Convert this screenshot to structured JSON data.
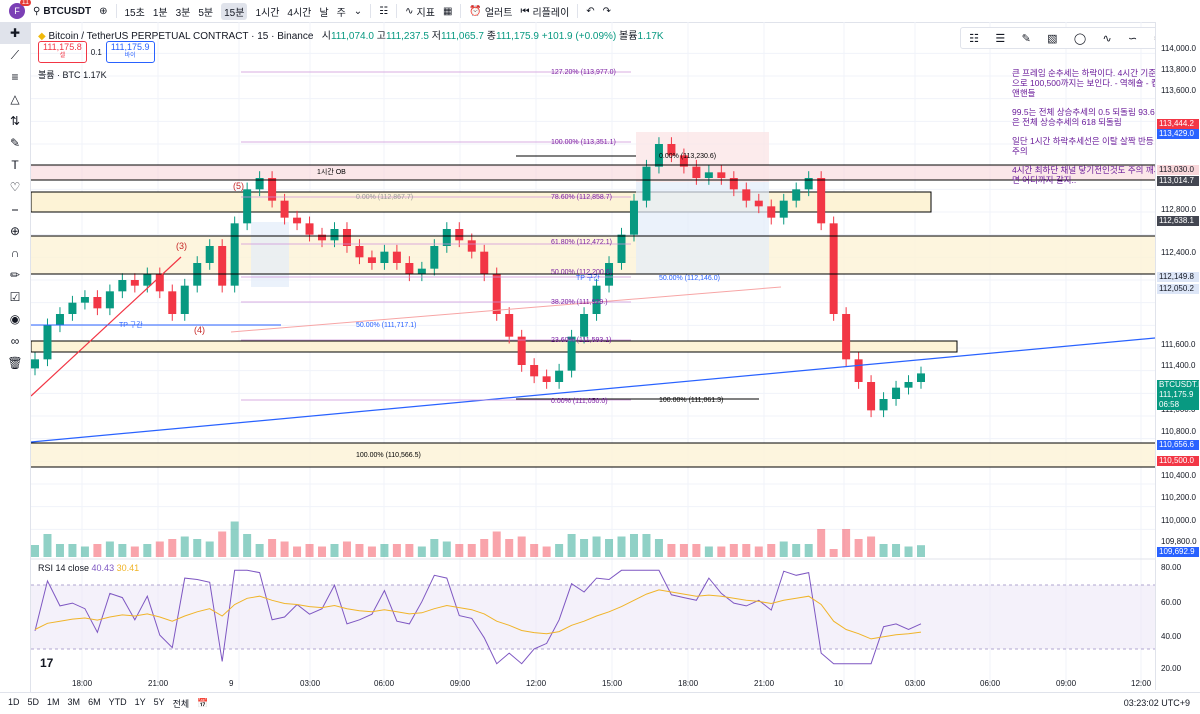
{
  "topbar": {
    "avatar": "F",
    "avatar_badge": "11",
    "symbol": "BTCUSDT",
    "intervals": [
      "15초",
      "1분",
      "3분",
      "5분",
      "15분",
      "1시간",
      "4시간",
      "날",
      "주"
    ],
    "selected_interval": "15분",
    "indicators_label": "지표",
    "alerts_label": "얼러트",
    "replay_label": "리플레이"
  },
  "legend": {
    "title": "Bitcoin / TetherUS PERPETUAL CONTRACT · 15 · Binance",
    "o_label": "시",
    "o": "111,074.0",
    "h_label": "고",
    "h": "111,237.5",
    "l_label": "저",
    "l": "111,065.7",
    "c_label": "종",
    "c": "111,175.9",
    "change": "+101.9 (+0.09%)",
    "volume_label": "볼륨",
    "volume": "1.17K"
  },
  "order": {
    "sell_price": "111,175.8",
    "sell_label": "셀",
    "spread": "0.1",
    "buy_price": "111,175.9",
    "buy_label": "바이"
  },
  "volume_legend": {
    "label": "볼륨 · BTC",
    "value": "1.17K"
  },
  "rsi_legend": {
    "label": "RSI 14 close",
    "v1": "40.43",
    "v2": "30.41"
  },
  "note": {
    "p1": "큰 프레임 순추세는 하락이다. 4시간 기준으로 100,500까지는 보인다. - 역헤숄 - 컵앤핸들",
    "p2": "99.5는 전체 상승추세의 0.5 되돌림 93.6은 전체 상승추세의 618 되돌림",
    "p3": "일단 1시간 하락추세선은 이탈 살짝 반등 주의",
    "p4": "4시간 최하단 채널 닿기전인것도 주의 깨지면 어디까지 갈지.."
  },
  "chart_labels": {
    "ob": "1시간 OB",
    "tp1": "TP 구간",
    "tp2": "TP 구간",
    "wave3": "(3)",
    "wave4": "(4)",
    "wave5": "(5)",
    "fib": [
      "127.20% (113,977.0)",
      "100.00% (113,351.1)",
      "0.00% (113,230.6)",
      "0.00% (112,867.7)",
      "78.60% (112,858.7)",
      "61.80% (112,472.1)",
      "50.00% (112,200.6)",
      "50.00% (112,146.0)",
      "38.20% (111,929.)",
      "50.00% (111,717.1)",
      "23.60% (111,593.1)",
      "0.00% (111,050.0)",
      "100.00% (111,061.3)",
      "100.00% (110,566.5)"
    ]
  },
  "price_axis": {
    "labels": [
      "114,000.0",
      "113,800.0",
      "113,600.0",
      "113,200.0",
      "112,800.0",
      "112,400.0",
      "112,200.0",
      "111,600.0",
      "111,400.0",
      "111,000.0",
      "110,800.0",
      "110,400.0",
      "110,200.0",
      "110,000.0",
      "109,800.0"
    ],
    "tags": [
      {
        "text": "113,444.2",
        "bg": "#f23645",
        "fg": "#ffffff"
      },
      {
        "text": "113,429.0",
        "bg": "#2962ff",
        "fg": "#ffffff"
      },
      {
        "text": "113,030.0",
        "bg": "#f8d7da",
        "fg": "#131722"
      },
      {
        "text": "113,014.7",
        "bg": "#434651",
        "fg": "#ffffff"
      },
      {
        "text": "112,638.1",
        "bg": "#434651",
        "fg": "#ffffff"
      },
      {
        "text": "112,149.8",
        "bg": "#dde6f7",
        "fg": "#131722"
      },
      {
        "text": "112,050.2",
        "bg": "#dde6f7",
        "fg": "#131722"
      },
      {
        "text": "BTCUSDT.P",
        "bg": "#089981",
        "fg": "#ffffff"
      },
      {
        "text": "111,175.9",
        "bg": "#089981",
        "fg": "#ffffff"
      },
      {
        "text": "06:58",
        "bg": "#089981",
        "fg": "#ffffff"
      },
      {
        "text": "110,656.6",
        "bg": "#2962ff",
        "fg": "#ffffff"
      },
      {
        "text": "110,500.0",
        "bg": "#f23645",
        "fg": "#ffffff"
      },
      {
        "text": "109,692.9",
        "bg": "#2962ff",
        "fg": "#ffffff"
      }
    ],
    "rsi_labels": [
      "80.00",
      "60.00",
      "40.00",
      "20.00"
    ]
  },
  "time_axis": [
    "18:00",
    "21:00",
    "9",
    "03:00",
    "06:00",
    "09:00",
    "12:00",
    "15:00",
    "18:00",
    "21:00",
    "10",
    "03:00",
    "06:00",
    "09:00",
    "12:00"
  ],
  "bottombar": {
    "ranges": [
      "1D",
      "5D",
      "1M",
      "3M",
      "6M",
      "YTD",
      "1Y",
      "5Y",
      "전체"
    ],
    "clock": "03:23:02 UTC+9"
  },
  "colors": {
    "up": "#089981",
    "down": "#f23645",
    "trend": "#2962ff",
    "rsi": "#7e57c2",
    "rsi_ma": "#f0b429"
  },
  "chart_data": {
    "type": "candlestick",
    "symbol": "BTCUSDT.P",
    "interval": "15",
    "ylim": [
      109600,
      114100
    ],
    "ohlc_close_path": [
      111300,
      111600,
      111700,
      111800,
      111850,
      111750,
      111900,
      112000,
      111950,
      112050,
      111900,
      111700,
      111950,
      112150,
      112300,
      111950,
      112500,
      112800,
      112900,
      112700,
      112550,
      112500,
      112400,
      112350,
      112450,
      112300,
      112200,
      112150,
      112250,
      112150,
      112050,
      112100,
      112300,
      112450,
      112350,
      112250,
      112050,
      111700,
      111500,
      111250,
      111150,
      111100,
      111200,
      111500,
      111700,
      111950,
      112150,
      112400,
      112700,
      113000,
      113200,
      113100,
      113000,
      112900,
      112950,
      112900,
      112800,
      112700,
      112650,
      112550,
      112700,
      112800,
      112900,
      112500,
      111700,
      111300,
      111100,
      110850,
      110950,
      111050,
      111100,
      111175.9
    ],
    "last_close": 111175.9,
    "rsi_ylim": [
      20,
      80
    ],
    "rsi_last": 40.43,
    "rsi_ma_last": 30.41
  }
}
